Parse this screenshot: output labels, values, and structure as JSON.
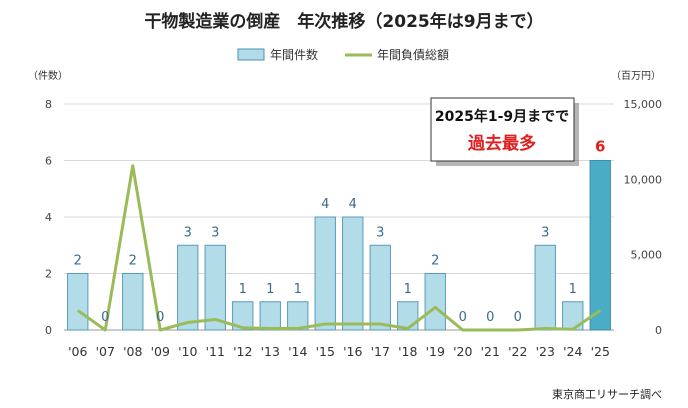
{
  "chart_data": {
    "type": "bar",
    "title": "干物製造業の倒産　年次推移（2025年は9月まで）",
    "categories": [
      "'06",
      "'07",
      "'08",
      "'09",
      "'10",
      "'11",
      "'12",
      "'13",
      "'14",
      "'15",
      "'16",
      "'17",
      "'18",
      "'19",
      "'20",
      "'21",
      "'22",
      "'23",
      "'24",
      "'25"
    ],
    "series": [
      {
        "name": "年間件数",
        "type": "bar",
        "axis": "left",
        "color": "#b3dce9",
        "highlight_color": "#4bacc6",
        "values": [
          2,
          0,
          2,
          0,
          3,
          3,
          1,
          1,
          1,
          4,
          4,
          3,
          1,
          2,
          0,
          0,
          0,
          3,
          1,
          6
        ]
      },
      {
        "name": "年間負債総額",
        "type": "line",
        "axis": "right",
        "color": "#9bbb59",
        "values": [
          1300,
          0,
          10900,
          0,
          500,
          700,
          150,
          100,
          100,
          400,
          400,
          400,
          100,
          1500,
          0,
          0,
          0,
          100,
          50,
          1300
        ]
      }
    ],
    "left_axis": {
      "unit": "（件数）",
      "ylim": [
        0,
        8
      ],
      "ticks": [
        "0",
        "2",
        "4",
        "6",
        "8"
      ]
    },
    "right_axis": {
      "unit": "（百万円）",
      "ylim": [
        0,
        15000
      ],
      "ticks": [
        "0",
        "5,000",
        "10,000",
        "15,000"
      ]
    },
    "annotation": {
      "line1": "2025年1-9月までで",
      "line2": "過去最多"
    },
    "source": "東京商工リサーチ調べ",
    "grid": true,
    "legend_position": "top"
  }
}
